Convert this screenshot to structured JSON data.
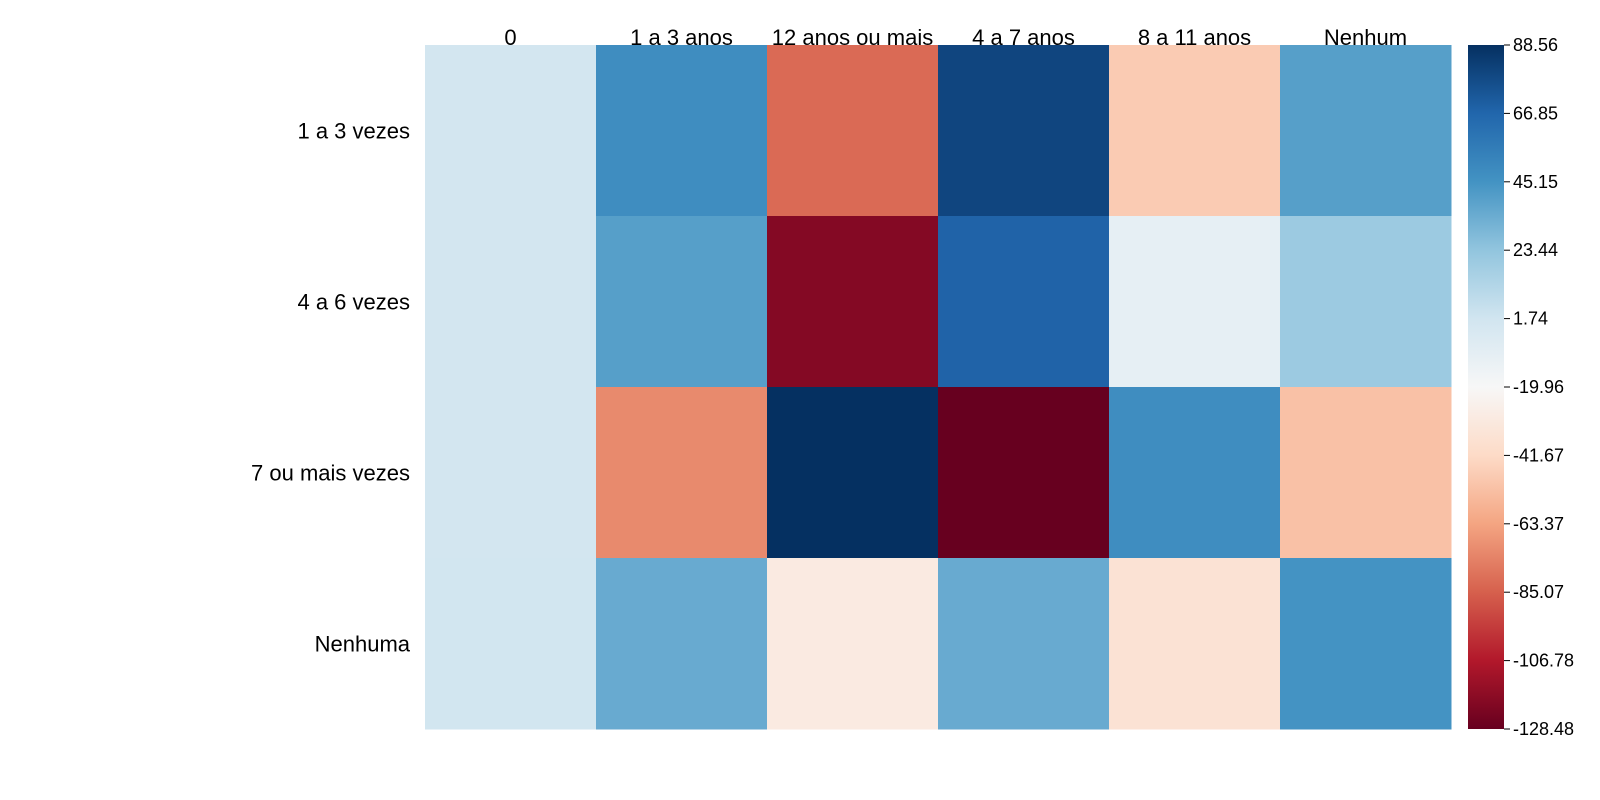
{
  "chart_data": {
    "type": "heatmap",
    "title": "",
    "xlabel": "",
    "ylabel": "",
    "columns": [
      "0",
      "1 a 3 anos",
      "12 anos ou mais",
      "4 a 7 anos",
      "8 a 11 anos",
      "Nenhum"
    ],
    "rows": [
      "1 a 3 vezes",
      "4 a 6 vezes",
      "7 ou mais vezes",
      "Nenhuma"
    ],
    "values": [
      [
        0.5,
        48,
        -82,
        80,
        -48,
        40
      ],
      [
        0.5,
        40,
        -120,
        68,
        -10,
        20
      ],
      [
        0.5,
        -72,
        88.56,
        -128.48,
        48,
        -52
      ],
      [
        1.0,
        35,
        -30,
        35,
        -36,
        45
      ]
    ],
    "colorbar": {
      "min": -128.48,
      "max": 88.56,
      "ticks": [
        "88.56",
        "66.85",
        "45.15",
        "23.44",
        "1.74",
        "-19.96",
        "-41.67",
        "-63.37",
        "-85.07",
        "-106.78",
        "-128.48"
      ],
      "colors": [
        "#67001f",
        "#b2182b",
        "#d6604d",
        "#f4a582",
        "#fddbc7",
        "#f7f7f7",
        "#d1e5f0",
        "#92c5de",
        "#4393c3",
        "#2166ac",
        "#053061"
      ]
    },
    "grid": false,
    "legend": "right"
  }
}
